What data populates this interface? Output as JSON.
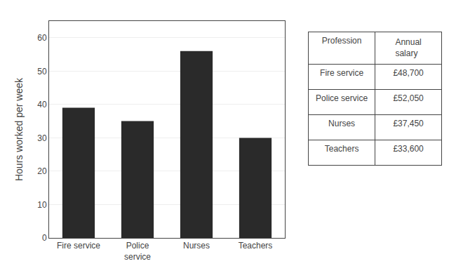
{
  "chart_data": [
    {
      "type": "bar",
      "categories": [
        "Fire service",
        "Police\nservice",
        "Nurses",
        "Teachers"
      ],
      "values": [
        39,
        35,
        56,
        30
      ],
      "color": "#2a2a2a",
      "ylabel": "Hours worked per week",
      "ylim": [
        0,
        65
      ],
      "yticks": [
        0,
        10,
        20,
        30,
        40,
        50,
        60
      ],
      "grid": true
    },
    {
      "type": "table",
      "header": [
        "Profession",
        "Annual\nsalary"
      ],
      "cells": [
        [
          "Fire service",
          "Police service",
          "Nurses",
          "Teachers"
        ],
        [
          "£48,700",
          "£52,050",
          "£37,450",
          "£33,600"
        ]
      ]
    }
  ]
}
